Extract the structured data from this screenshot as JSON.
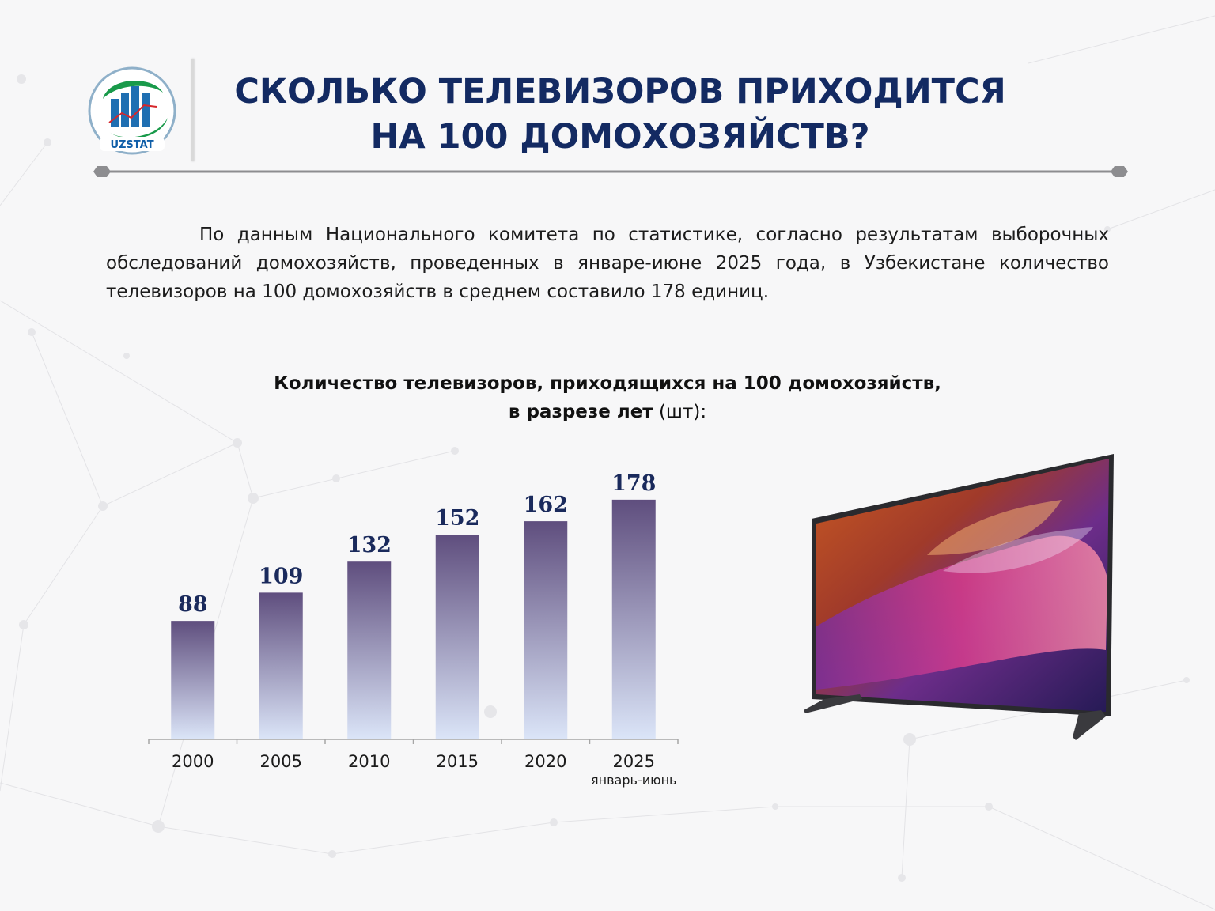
{
  "header": {
    "logo_text": "UZSTAT",
    "title_line1": "СКОЛЬКО ТЕЛЕВИЗОРОВ ПРИХОДИТСЯ",
    "title_line2": "НА 100 ДОМОХОЗЯЙСТВ?"
  },
  "body_text": "По данным Национального комитета по статистике, согласно результатам выборочных обследований домохозяйств, проведенных в январе-июне 2025 года, в Узбекистане количество телевизоров на 100 домохозяйств в среднем составило 178 единиц.",
  "colors": {
    "title": "#132a62",
    "bar_top": "#5f4e7e",
    "bar_bottom": "#dbe5f8",
    "value_label": "#1a2a5c"
  },
  "chart_data": {
    "type": "bar",
    "title_bold_line1": "Количество телевизоров, приходящихся на 100 домохозяйств,",
    "title_bold_line2": "в разрезе лет",
    "title_unit": "(шт):",
    "categories": [
      "2000",
      "2005",
      "2010",
      "2015",
      "2020",
      "2025"
    ],
    "category_sublabels": [
      "",
      "",
      "",
      "",
      "",
      "январь-июнь"
    ],
    "values": [
      88,
      109,
      132,
      152,
      162,
      178
    ],
    "ylim": [
      0,
      200
    ],
    "grid": false,
    "data_labels": true
  }
}
